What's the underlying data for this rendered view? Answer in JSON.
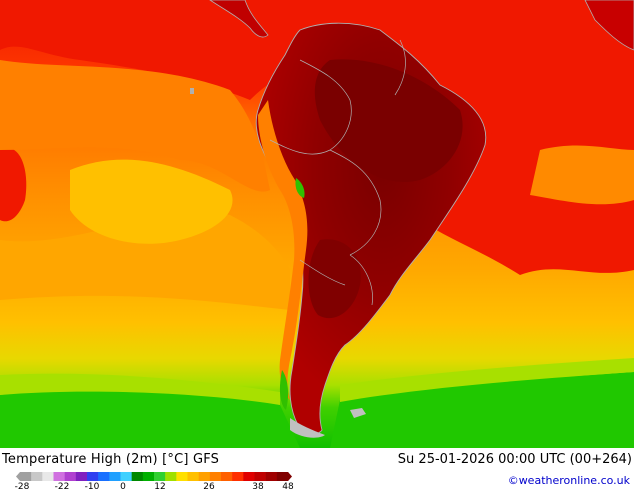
{
  "title": "Temperature High (2m) [°C] GFS",
  "datetime": "Su 25-01-2026 00:00 UTC (00+264)",
  "credit": "©weatheronline.co.uk",
  "legend": {
    "ticks": [
      "-28",
      "-22",
      "-10",
      "0",
      "12",
      "26",
      "38",
      "48"
    ],
    "colors": [
      "#a0a0a0",
      "#c8c8c8",
      "#e8e8e8",
      "#d070e0",
      "#b040d0",
      "#8020c0",
      "#3040f0",
      "#1870ff",
      "#20a0ff",
      "#40d0ff",
      "#008800",
      "#00b000",
      "#30d030",
      "#a0e000",
      "#ffe000",
      "#ffc000",
      "#ffa000",
      "#ff8000",
      "#ff6000",
      "#ff3000",
      "#e00000",
      "#c00000",
      "#a00000",
      "#800000"
    ]
  },
  "colors": {
    "ocean_red": "#f01800",
    "ocean_orange": "#ff7a00",
    "ocean_amber": "#ffa200",
    "ocean_yellow": "#ffc400",
    "ocean_lime": "#a8e000",
    "ocean_green": "#22cc00",
    "land_hot": "#a00000",
    "land_darkest": "#7a0000",
    "coast": "#b0b0b0"
  }
}
